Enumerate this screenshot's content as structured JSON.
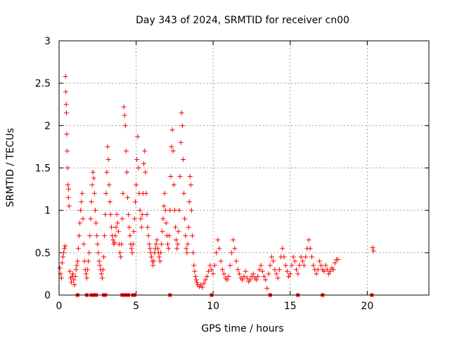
{
  "chart_data": {
    "type": "scatter",
    "title": "Day 343 of 2024, SRMTID for receiver cn00",
    "xlabel": "GPS time / hours",
    "ylabel": "SRMTID / TECUs",
    "xlim": [
      0,
      24
    ],
    "ylim": [
      0,
      3
    ],
    "xticks": [
      0,
      5,
      10,
      15,
      20
    ],
    "xtick_labels": [
      "0",
      "5",
      "10",
      "15",
      "20"
    ],
    "yticks": [
      0,
      0.5,
      1,
      1.5,
      2,
      2.5,
      3
    ],
    "ytick_labels": [
      "0",
      "0.5",
      "1",
      "1.5",
      "2",
      "2.5",
      "3"
    ],
    "grid": true,
    "series": [
      {
        "name": "SRMTID",
        "marker": "plus",
        "color": "#ff0000",
        "points": [
          [
            0.05,
            0.32
          ],
          [
            0.1,
            0.25
          ],
          [
            0.15,
            0.2
          ],
          [
            0.2,
            0.38
          ],
          [
            0.25,
            0.45
          ],
          [
            0.3,
            0.5
          ],
          [
            0.35,
            0.55
          ],
          [
            0.4,
            0.58
          ],
          [
            0.42,
            2.58
          ],
          [
            0.44,
            2.4
          ],
          [
            0.46,
            2.25
          ],
          [
            0.48,
            2.15
          ],
          [
            0.5,
            1.9
          ],
          [
            0.52,
            1.7
          ],
          [
            0.55,
            1.5
          ],
          [
            0.58,
            1.3
          ],
          [
            0.6,
            1.15
          ],
          [
            0.62,
            1.25
          ],
          [
            0.65,
            1.05
          ],
          [
            0.7,
            0.28
          ],
          [
            0.75,
            0.2
          ],
          [
            0.8,
            0.15
          ],
          [
            0.85,
            0.22
          ],
          [
            0.9,
            0.25
          ],
          [
            0.95,
            0.18
          ],
          [
            1.0,
            0.12
          ],
          [
            1.05,
            0.22
          ],
          [
            1.1,
            0.3
          ],
          [
            1.15,
            0.35
          ],
          [
            1.2,
            0.4
          ],
          [
            1.25,
            0.55
          ],
          [
            1.3,
            0.7
          ],
          [
            1.35,
            0.85
          ],
          [
            1.4,
            1.0
          ],
          [
            1.45,
            1.1
          ],
          [
            1.5,
            1.2
          ],
          [
            1.55,
            0.9
          ],
          [
            1.6,
            0.6
          ],
          [
            1.65,
            0.4
          ],
          [
            1.7,
            0.3
          ],
          [
            1.75,
            0.25
          ],
          [
            1.8,
            0.2
          ],
          [
            1.85,
            0.3
          ],
          [
            1.9,
            0.4
          ],
          [
            1.95,
            0.5
          ],
          [
            2.0,
            0.7
          ],
          [
            2.05,
            0.9
          ],
          [
            2.1,
            1.1
          ],
          [
            2.15,
            1.3
          ],
          [
            2.2,
            1.45
          ],
          [
            2.25,
            1.38
          ],
          [
            2.3,
            1.2
          ],
          [
            2.35,
            1.0
          ],
          [
            2.4,
            0.85
          ],
          [
            2.45,
            0.7
          ],
          [
            2.5,
            0.6
          ],
          [
            2.55,
            0.5
          ],
          [
            2.6,
            0.4
          ],
          [
            2.65,
            0.35
          ],
          [
            2.7,
            0.3
          ],
          [
            2.75,
            0.25
          ],
          [
            2.8,
            0.2
          ],
          [
            2.85,
            0.3
          ],
          [
            2.9,
            0.45
          ],
          [
            2.95,
            0.7
          ],
          [
            3.0,
            0.95
          ],
          [
            3.05,
            1.2
          ],
          [
            3.1,
            1.45
          ],
          [
            3.15,
            1.75
          ],
          [
            3.2,
            1.6
          ],
          [
            3.25,
            1.3
          ],
          [
            3.3,
            1.1
          ],
          [
            3.35,
            0.95
          ],
          [
            3.4,
            0.8
          ],
          [
            3.45,
            0.7
          ],
          [
            3.5,
            0.65
          ],
          [
            3.55,
            0.6
          ],
          [
            3.6,
            0.62
          ],
          [
            3.65,
            0.7
          ],
          [
            3.7,
            0.8
          ],
          [
            3.75,
            0.95
          ],
          [
            3.8,
            0.85
          ],
          [
            3.85,
            0.75
          ],
          [
            3.9,
            0.6
          ],
          [
            3.95,
            0.5
          ],
          [
            4.0,
            0.45
          ],
          [
            4.05,
            0.6
          ],
          [
            4.1,
            0.9
          ],
          [
            4.15,
            1.2
          ],
          [
            4.2,
            2.22
          ],
          [
            4.25,
            2.12
          ],
          [
            4.3,
            2.0
          ],
          [
            4.35,
            1.7
          ],
          [
            4.4,
            1.45
          ],
          [
            4.45,
            1.15
          ],
          [
            4.5,
            0.95
          ],
          [
            4.55,
            0.8
          ],
          [
            4.6,
            0.7
          ],
          [
            4.65,
            0.6
          ],
          [
            4.7,
            0.55
          ],
          [
            4.75,
            0.5
          ],
          [
            4.8,
            0.6
          ],
          [
            4.85,
            0.75
          ],
          [
            4.9,
            0.9
          ],
          [
            4.95,
            1.1
          ],
          [
            5.0,
            1.3
          ],
          [
            5.05,
            1.6
          ],
          [
            5.1,
            1.87
          ],
          [
            5.15,
            1.5
          ],
          [
            5.2,
            1.2
          ],
          [
            5.25,
            1.0
          ],
          [
            5.3,
            0.9
          ],
          [
            5.35,
            0.8
          ],
          [
            5.4,
            0.95
          ],
          [
            5.45,
            1.2
          ],
          [
            5.5,
            1.55
          ],
          [
            5.55,
            1.7
          ],
          [
            5.6,
            1.45
          ],
          [
            5.65,
            1.2
          ],
          [
            5.7,
            0.95
          ],
          [
            5.75,
            0.8
          ],
          [
            5.8,
            0.7
          ],
          [
            5.85,
            0.6
          ],
          [
            5.9,
            0.55
          ],
          [
            5.95,
            0.5
          ],
          [
            6.0,
            0.45
          ],
          [
            6.05,
            0.4
          ],
          [
            6.1,
            0.35
          ],
          [
            6.15,
            0.4
          ],
          [
            6.2,
            0.5
          ],
          [
            6.25,
            0.55
          ],
          [
            6.3,
            0.6
          ],
          [
            6.35,
            0.65
          ],
          [
            6.4,
            0.55
          ],
          [
            6.45,
            0.5
          ],
          [
            6.5,
            0.45
          ],
          [
            6.55,
            0.4
          ],
          [
            6.6,
            0.5
          ],
          [
            6.65,
            0.6
          ],
          [
            6.7,
            0.75
          ],
          [
            6.75,
            0.9
          ],
          [
            6.8,
            1.05
          ],
          [
            6.85,
            1.2
          ],
          [
            6.9,
            1.0
          ],
          [
            6.95,
            0.85
          ],
          [
            7.0,
            0.7
          ],
          [
            7.05,
            0.6
          ],
          [
            7.1,
            0.55
          ],
          [
            7.15,
            0.7
          ],
          [
            7.2,
            1.0
          ],
          [
            7.25,
            1.4
          ],
          [
            7.3,
            1.75
          ],
          [
            7.35,
            1.95
          ],
          [
            7.4,
            1.7
          ],
          [
            7.45,
            1.3
          ],
          [
            7.5,
            1.0
          ],
          [
            7.55,
            0.8
          ],
          [
            7.6,
            0.65
          ],
          [
            7.65,
            0.55
          ],
          [
            7.7,
            0.6
          ],
          [
            7.75,
            0.75
          ],
          [
            7.8,
            1.0
          ],
          [
            7.85,
            1.4
          ],
          [
            7.9,
            1.8
          ],
          [
            7.95,
            2.15
          ],
          [
            8.0,
            2.0
          ],
          [
            8.05,
            1.6
          ],
          [
            8.1,
            1.2
          ],
          [
            8.15,
            0.9
          ],
          [
            8.2,
            0.7
          ],
          [
            8.25,
            0.55
          ],
          [
            8.3,
            0.5
          ],
          [
            8.35,
            0.6
          ],
          [
            8.4,
            0.8
          ],
          [
            8.45,
            1.1
          ],
          [
            8.5,
            1.4
          ],
          [
            8.55,
            1.3
          ],
          [
            8.6,
            1.0
          ],
          [
            8.65,
            0.7
          ],
          [
            8.7,
            0.5
          ],
          [
            8.75,
            0.35
          ],
          [
            8.8,
            0.28
          ],
          [
            8.85,
            0.22
          ],
          [
            8.9,
            0.18
          ],
          [
            8.95,
            0.15
          ],
          [
            9.0,
            0.12
          ],
          [
            9.1,
            0.1
          ],
          [
            9.2,
            0.12
          ],
          [
            9.3,
            0.09
          ],
          [
            9.4,
            0.14
          ],
          [
            9.5,
            0.18
          ],
          [
            9.6,
            0.22
          ],
          [
            9.7,
            0.28
          ],
          [
            9.8,
            0.35
          ],
          [
            9.9,
            0.3
          ],
          [
            10.0,
            0.25
          ],
          [
            10.1,
            0.35
          ],
          [
            10.2,
            0.5
          ],
          [
            10.3,
            0.65
          ],
          [
            10.4,
            0.55
          ],
          [
            10.5,
            0.4
          ],
          [
            10.6,
            0.3
          ],
          [
            10.7,
            0.25
          ],
          [
            10.8,
            0.2
          ],
          [
            10.9,
            0.18
          ],
          [
            11.0,
            0.22
          ],
          [
            11.1,
            0.35
          ],
          [
            11.2,
            0.5
          ],
          [
            11.3,
            0.65
          ],
          [
            11.4,
            0.55
          ],
          [
            11.5,
            0.4
          ],
          [
            11.6,
            0.3
          ],
          [
            11.7,
            0.25
          ],
          [
            11.8,
            0.2
          ],
          [
            11.9,
            0.18
          ],
          [
            12.0,
            0.22
          ],
          [
            12.1,
            0.28
          ],
          [
            12.2,
            0.2
          ],
          [
            12.3,
            0.16
          ],
          [
            12.4,
            0.18
          ],
          [
            12.5,
            0.22
          ],
          [
            12.6,
            0.25
          ],
          [
            12.7,
            0.2
          ],
          [
            12.8,
            0.18
          ],
          [
            12.9,
            0.22
          ],
          [
            13.0,
            0.3
          ],
          [
            13.1,
            0.35
          ],
          [
            13.2,
            0.28
          ],
          [
            13.3,
            0.22
          ],
          [
            13.4,
            0.18
          ],
          [
            13.5,
            0.08
          ],
          [
            13.6,
            0.25
          ],
          [
            13.7,
            0.35
          ],
          [
            13.8,
            0.45
          ],
          [
            13.9,
            0.4
          ],
          [
            14.0,
            0.3
          ],
          [
            14.1,
            0.25
          ],
          [
            14.2,
            0.2
          ],
          [
            14.3,
            0.3
          ],
          [
            14.4,
            0.45
          ],
          [
            14.5,
            0.55
          ],
          [
            14.6,
            0.45
          ],
          [
            14.7,
            0.35
          ],
          [
            14.8,
            0.28
          ],
          [
            14.9,
            0.22
          ],
          [
            15.0,
            0.25
          ],
          [
            15.1,
            0.35
          ],
          [
            15.2,
            0.45
          ],
          [
            15.3,
            0.4
          ],
          [
            15.4,
            0.3
          ],
          [
            15.5,
            0.25
          ],
          [
            15.6,
            0.35
          ],
          [
            15.7,
            0.45
          ],
          [
            15.8,
            0.4
          ],
          [
            15.9,
            0.35
          ],
          [
            16.0,
            0.45
          ],
          [
            16.1,
            0.55
          ],
          [
            16.2,
            0.65
          ],
          [
            16.3,
            0.55
          ],
          [
            16.4,
            0.45
          ],
          [
            16.5,
            0.35
          ],
          [
            16.6,
            0.3
          ],
          [
            16.7,
            0.25
          ],
          [
            16.8,
            0.3
          ],
          [
            16.9,
            0.4
          ],
          [
            17.0,
            0.35
          ],
          [
            17.1,
            0.3
          ],
          [
            17.2,
            0.28
          ],
          [
            17.3,
            0.35
          ],
          [
            17.4,
            0.3
          ],
          [
            17.5,
            0.25
          ],
          [
            17.6,
            0.28
          ],
          [
            17.7,
            0.32
          ],
          [
            17.8,
            0.3
          ],
          [
            17.9,
            0.38
          ],
          [
            18.0,
            0.42
          ],
          [
            18.1,
            0.42
          ],
          [
            20.35,
            0.56
          ],
          [
            20.4,
            0.52
          ]
        ]
      }
    ],
    "zero_markers": [
      1.2,
      1.8,
      2.1,
      2.2,
      2.4,
      2.9,
      3.0,
      4.1,
      4.2,
      4.3,
      4.5,
      4.8,
      4.9,
      7.2,
      9.9,
      13.7,
      15.5,
      17.1,
      20.3
    ]
  }
}
